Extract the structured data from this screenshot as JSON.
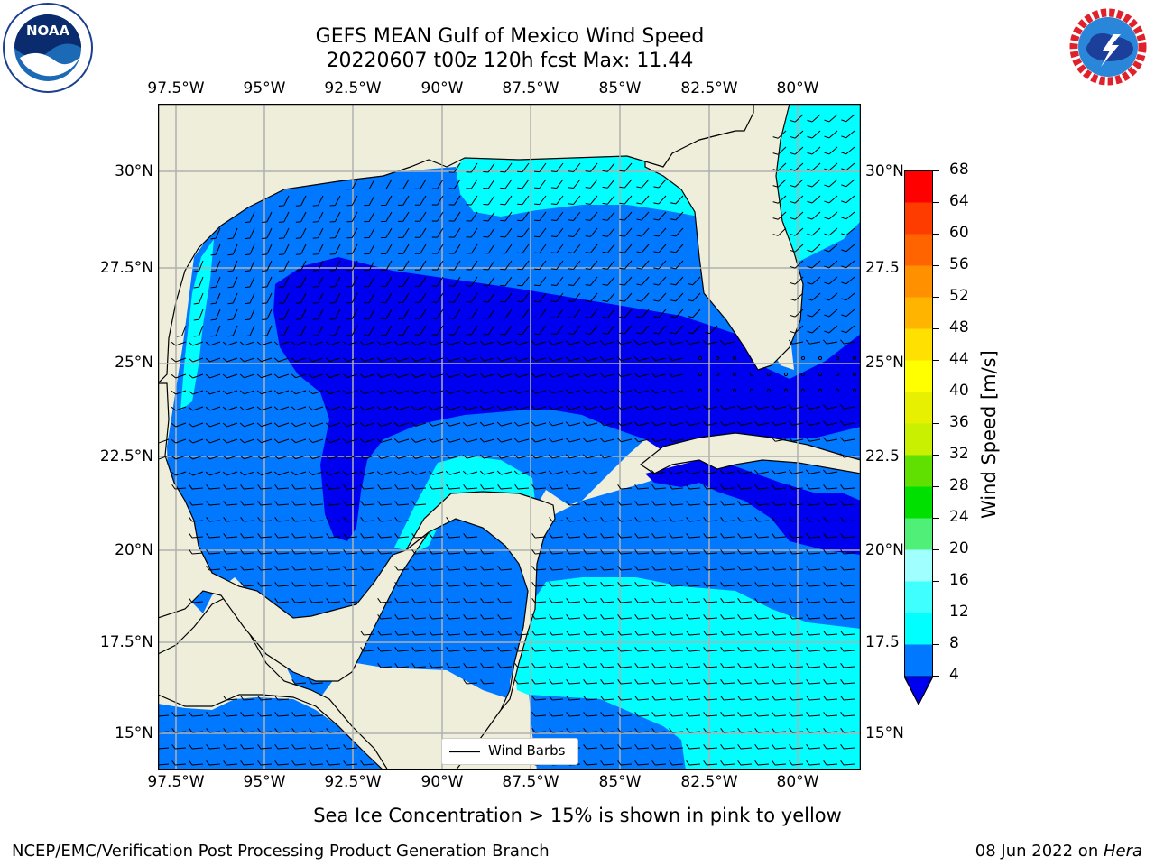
{
  "header": {
    "title_line1": "GEFS MEAN Gulf of Mexico Wind Speed",
    "title_line2": "20220607 t00z 120h fcst   Max: 11.44"
  },
  "logos": {
    "left": "noara-logo",
    "right": "nws-logo",
    "noaa_text": "NOAA",
    "nws_ring": "NATIONAL WEATHER SERVICE",
    "noaa_ring": "NATIONAL OCEANIC AND ATMOSPHERIC ADMINISTRATION · U.S. DEPARTMENT OF COMMERCE"
  },
  "map": {
    "lon_ticks": [
      "97.5°W",
      "95°W",
      "92.5°W",
      "90°W",
      "87.5°W",
      "85°W",
      "82.5°W",
      "80°W"
    ],
    "lat_ticks_left": [
      "30°N",
      "27.5°N",
      "25°N",
      "22.5°N",
      "20°N",
      "17.5°N",
      "15°N"
    ],
    "lat_ticks_right": [
      "30°N",
      "27.5",
      "25°N",
      "22.5",
      "20°N",
      "17.5",
      "15°N"
    ],
    "legend_label": "Wind Barbs",
    "colors": {
      "land": "#efeedb",
      "level_below4": "#0000f0",
      "level_4_8": "#0078ff",
      "level_8_12": "#00ffff"
    }
  },
  "colorbar": {
    "title": "Wind Speed [m/s]",
    "levels": [
      "4",
      "8",
      "12",
      "16",
      "20",
      "24",
      "28",
      "32",
      "36",
      "40",
      "44",
      "48",
      "52",
      "56",
      "60",
      "64",
      "68"
    ],
    "colors": [
      "#0078ff",
      "#00ffff",
      "#40ffff",
      "#a0ffff",
      "#50f078",
      "#00e000",
      "#60e000",
      "#c8f000",
      "#e6f000",
      "#ffff00",
      "#ffe000",
      "#ffb400",
      "#ff9000",
      "#ff6400",
      "#ff3c00",
      "#ff0000"
    ],
    "extend_color": "#0000f0"
  },
  "caption": "Sea Ice Concentration > 15% is shown in pink to yellow",
  "footer": {
    "left": "NCEP/EMC/Verification Post Processing Product Generation Branch",
    "right_prefix": "08 Jun 2022 on ",
    "right_host": "Hera"
  }
}
